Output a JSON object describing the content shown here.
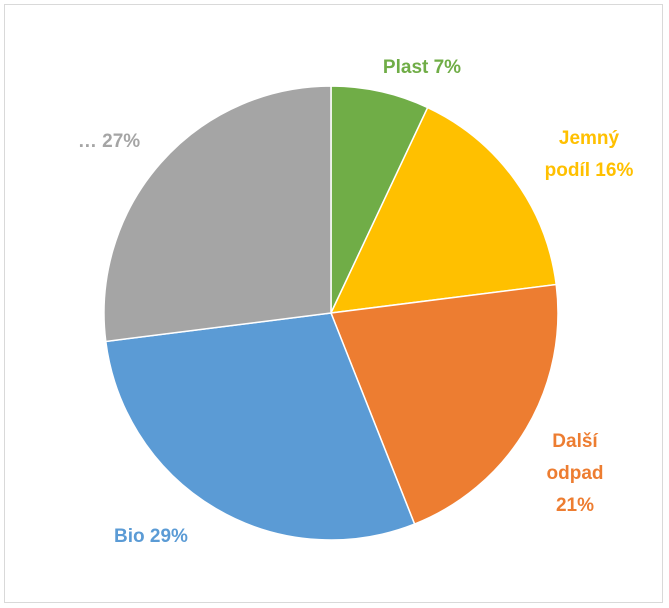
{
  "chart_data": {
    "type": "pie",
    "start_angle_deg": 0,
    "direction": "clockwise",
    "slices": [
      {
        "name": "Plast",
        "value": 7,
        "label_lines": [
          "Plast 7%"
        ],
        "color": "#70ad47"
      },
      {
        "name": "Jemný podíl",
        "value": 16,
        "label_lines": [
          "Jemný",
          "podíl 16%"
        ],
        "color": "#ffc000"
      },
      {
        "name": "Další odpad",
        "value": 21,
        "label_lines": [
          "Další",
          "odpad",
          "21%"
        ],
        "color": "#ed7d31"
      },
      {
        "name": "Bio",
        "value": 29,
        "label_lines": [
          "Bio 29%"
        ],
        "color": "#5b9bd5"
      },
      {
        "name": "…",
        "value": 27,
        "label_lines": [
          "… 27%"
        ],
        "color": "#a5a5a5"
      }
    ],
    "legend": "none"
  }
}
